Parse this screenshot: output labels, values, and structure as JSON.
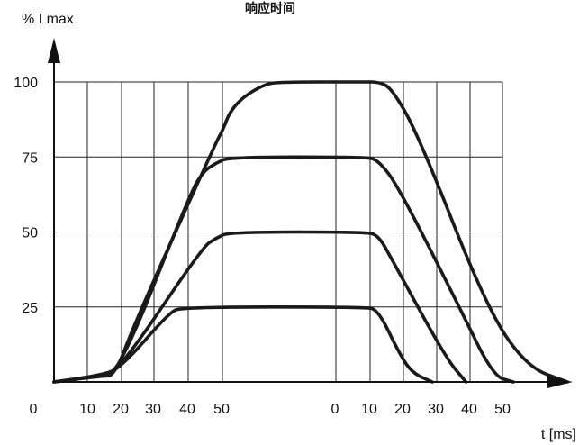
{
  "chart_data": {
    "type": "line",
    "title": "响应时间",
    "ylabel": "% I max",
    "xlabel": "t [ms]",
    "y_ticks": [
      "100",
      "75",
      "50",
      "25"
    ],
    "x_origin_label": "0",
    "x_ticks_rise": [
      "10",
      "20",
      "30",
      "40",
      "50"
    ],
    "x_ticks_fall": [
      "0",
      "10",
      "20",
      "30",
      "40",
      "50"
    ],
    "ylim": [
      0,
      100
    ],
    "grid": true,
    "series": [
      {
        "level": 100,
        "points": [
          [
            0,
            0
          ],
          [
            7,
            2
          ],
          [
            9,
            2
          ],
          [
            12,
            20
          ],
          [
            24,
            80
          ],
          [
            25,
            84
          ],
          [
            26,
            90
          ],
          [
            28,
            95
          ],
          [
            31,
            99
          ],
          [
            33,
            100
          ],
          [
            46,
            100
          ],
          [
            48,
            100
          ],
          [
            50,
            98
          ],
          [
            54,
            82
          ],
          [
            64,
            25
          ],
          [
            70,
            5
          ],
          [
            76,
            0
          ]
        ]
      },
      {
        "level": 75,
        "points": [
          [
            0,
            0
          ],
          [
            7,
            2
          ],
          [
            10,
            5
          ],
          [
            20,
            62
          ],
          [
            22,
            70
          ],
          [
            24,
            73
          ],
          [
            26,
            75
          ],
          [
            46,
            75
          ],
          [
            48,
            74
          ],
          [
            51,
            65
          ],
          [
            60,
            25
          ],
          [
            65,
            2
          ],
          [
            68,
            0
          ]
        ]
      },
      {
        "level": 50,
        "points": [
          [
            0,
            0
          ],
          [
            7,
            2
          ],
          [
            10,
            5
          ],
          [
            22,
            45
          ],
          [
            24,
            48
          ],
          [
            26,
            50
          ],
          [
            46,
            50
          ],
          [
            48,
            49
          ],
          [
            50,
            41
          ],
          [
            58,
            8
          ],
          [
            61,
            0
          ]
        ]
      },
      {
        "level": 25,
        "points": [
          [
            0,
            0
          ],
          [
            7,
            2
          ],
          [
            10,
            5
          ],
          [
            17,
            23
          ],
          [
            19,
            25
          ],
          [
            46,
            25
          ],
          [
            48,
            24
          ],
          [
            51,
            10
          ],
          [
            53,
            3
          ],
          [
            56,
            0
          ]
        ]
      }
    ]
  }
}
